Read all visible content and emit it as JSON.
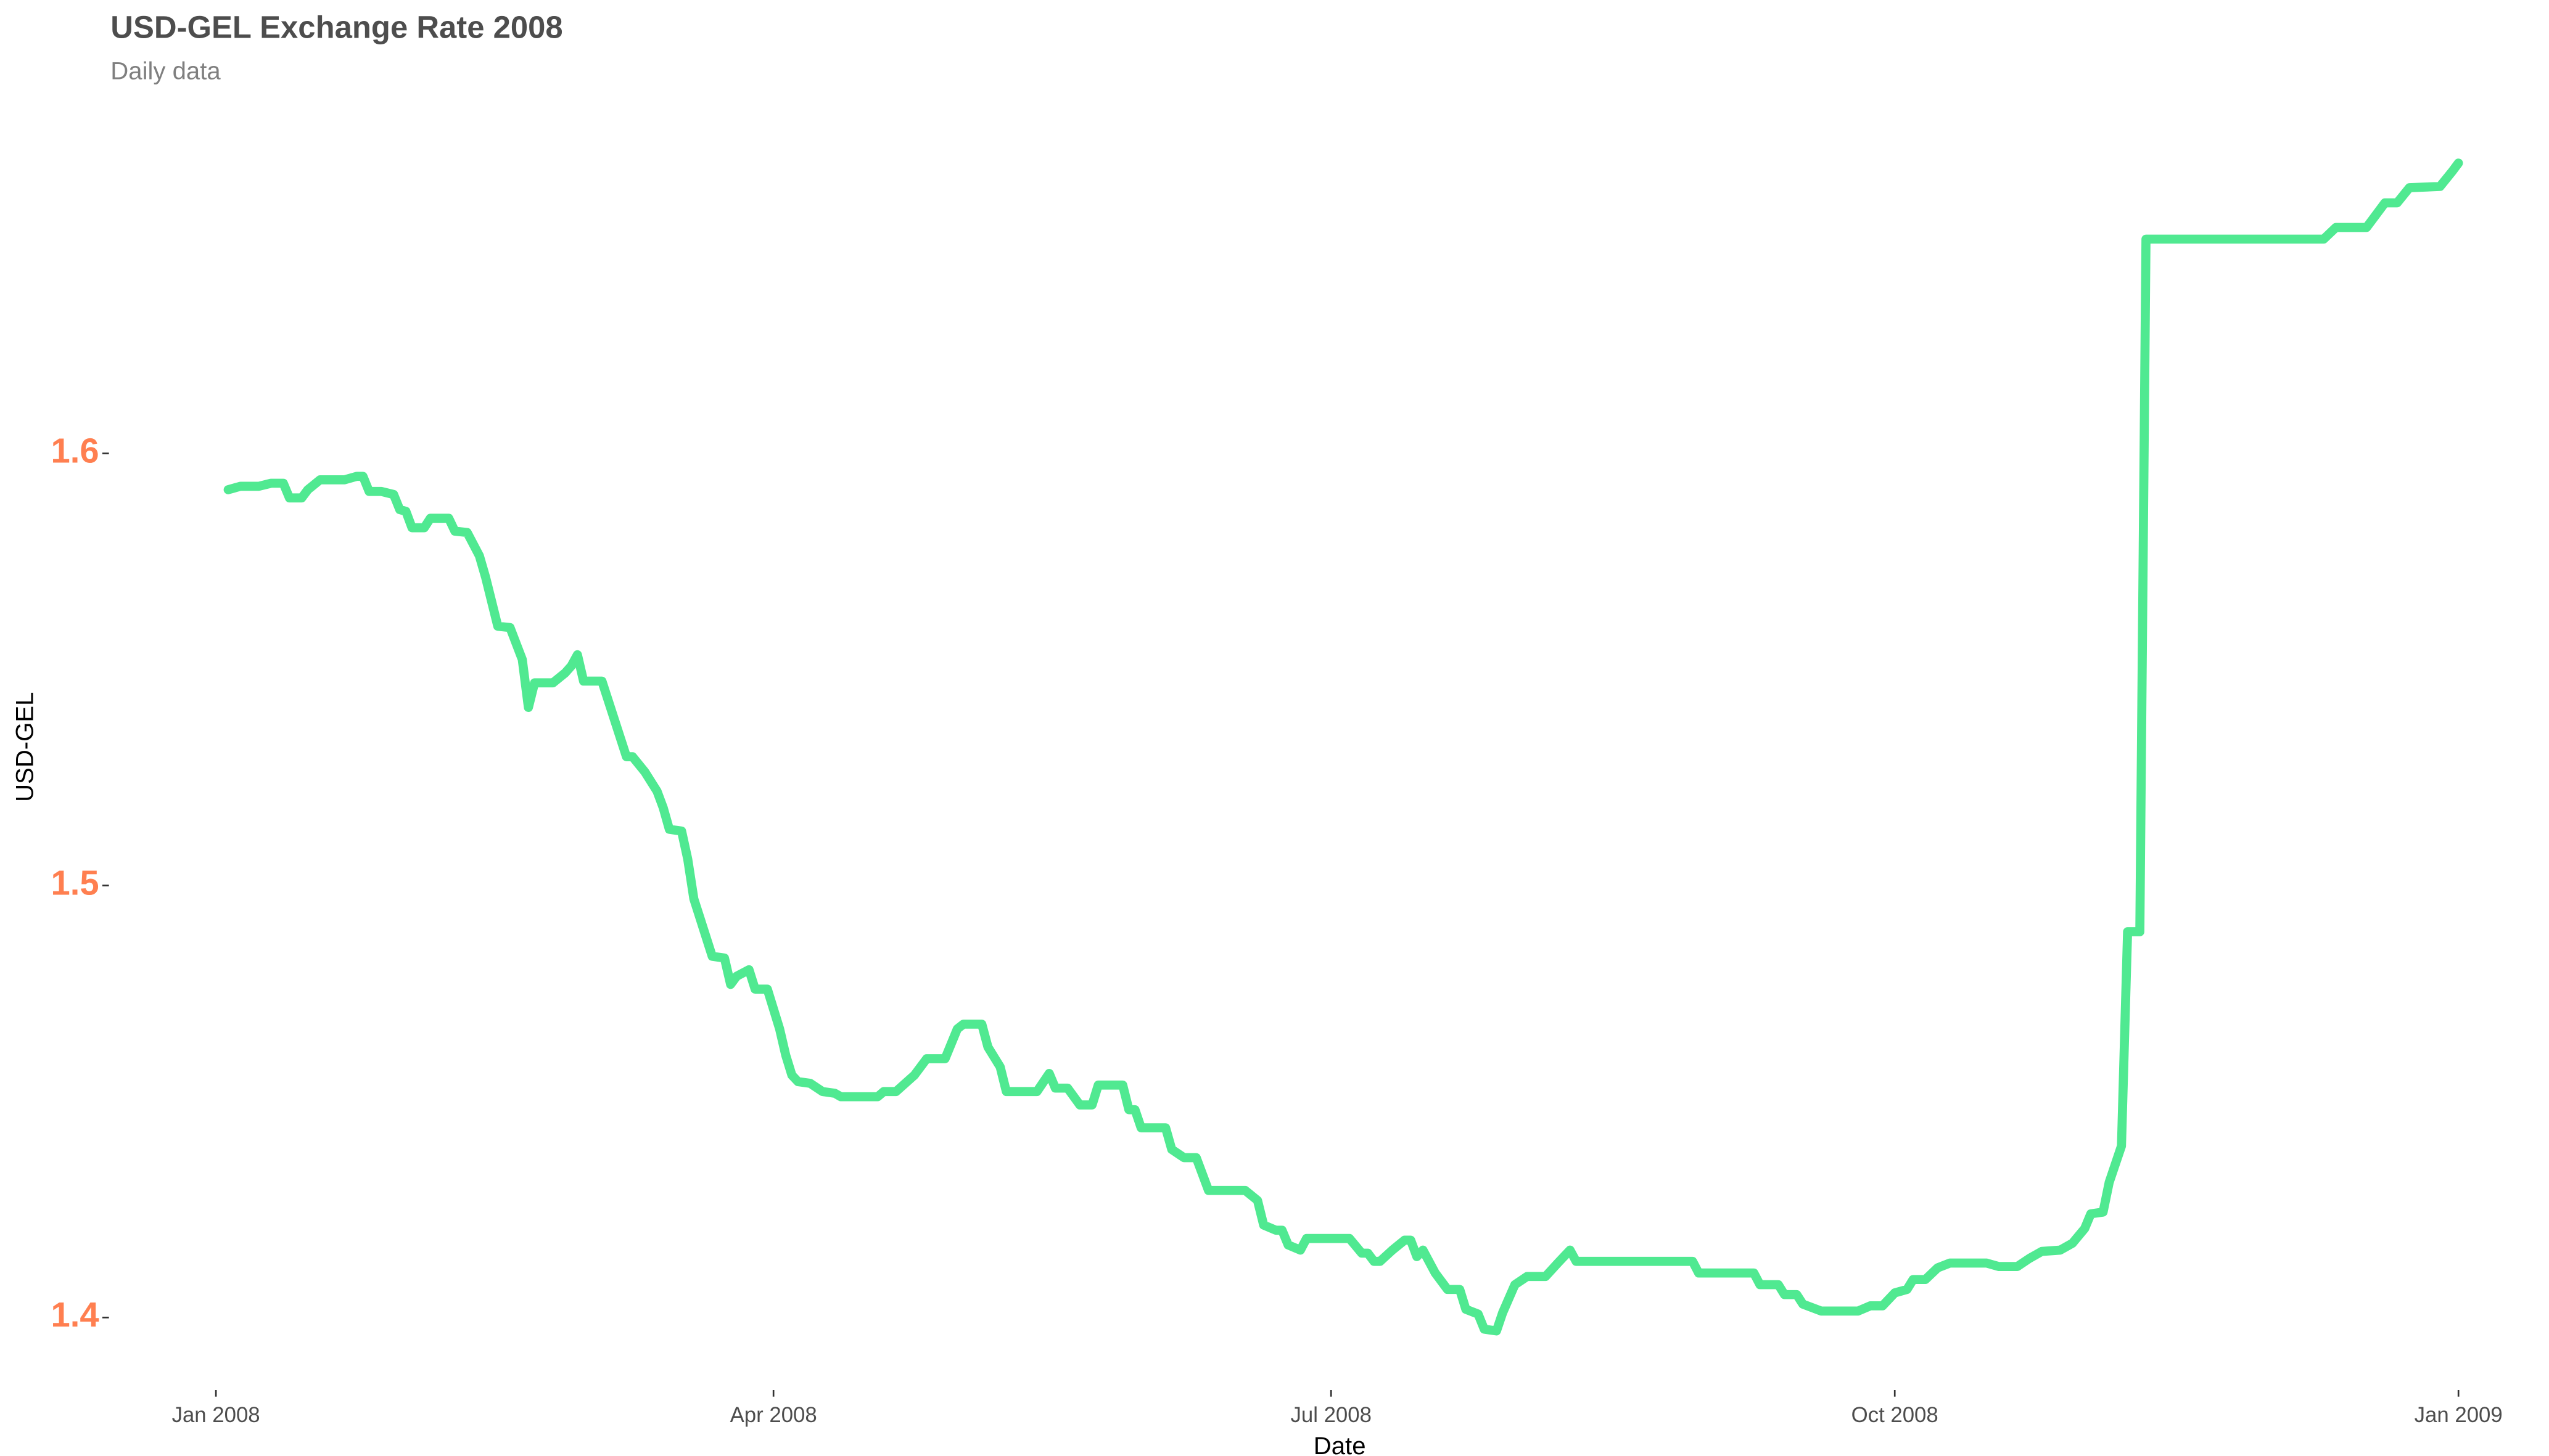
{
  "chart_data": {
    "type": "line",
    "title": "USD-GEL Exchange Rate 2008",
    "subtitle": "Daily data",
    "x_label": "Date",
    "y_label": "USD-GEL",
    "grid": false,
    "xlim": [
      -4,
      370
    ],
    "xticks": [
      {
        "value": 0,
        "label": "Jan 2008"
      },
      {
        "value": 91,
        "label": "Apr 2008"
      },
      {
        "value": 182,
        "label": "Jul 2008"
      },
      {
        "value": 274,
        "label": "Oct 2008"
      },
      {
        "value": 366,
        "label": "Jan 2009"
      }
    ],
    "ylim": [
      1.3939,
      1.6706
    ],
    "yticks": [
      1.4,
      1.5,
      1.6
    ],
    "tick_label_color": "#ff7f50",
    "x": [
      2,
      4,
      7,
      9,
      11,
      12,
      14,
      15,
      17,
      21,
      23,
      24,
      25,
      27,
      29,
      30,
      31,
      32,
      34,
      35,
      38,
      39,
      41,
      43,
      44,
      46,
      48,
      50,
      51,
      52,
      55,
      57,
      58,
      59,
      60,
      63,
      67,
      68,
      70,
      72,
      73,
      74,
      76,
      77,
      78,
      81,
      83,
      84,
      85,
      87,
      88,
      90,
      92,
      93,
      94,
      95,
      97,
      99,
      101,
      102,
      108,
      109,
      111,
      114,
      116,
      119,
      121,
      122,
      125,
      126,
      128,
      129,
      134,
      136,
      137,
      139,
      141,
      143,
      144,
      148,
      149,
      150,
      151,
      155,
      156,
      158,
      160,
      162,
      168,
      170,
      171,
      173,
      174,
      175,
      177,
      178,
      185,
      187,
      188,
      189,
      190,
      192,
      194,
      195,
      196,
      197,
      199,
      201,
      203,
      204,
      206,
      207,
      209,
      210,
      212,
      214,
      217,
      219,
      221,
      222,
      241,
      242,
      251,
      252,
      255,
      256,
      258,
      259,
      262,
      268,
      270,
      272,
      274,
      276,
      277,
      279,
      281,
      283,
      289,
      291,
      294,
      296,
      298,
      301,
      303,
      305,
      306,
      308,
      309,
      311,
      312,
      314,
      315,
      344,
      346,
      351,
      354,
      356,
      358,
      363,
      365,
      366
    ],
    "series": [
      {
        "name": "USD-GEL",
        "color": "#50e991",
        "values": [
          1.5916,
          1.5924,
          1.5924,
          1.5931,
          1.5931,
          1.5897,
          1.5897,
          1.5916,
          1.5939,
          1.5939,
          1.5947,
          1.5947,
          1.5912,
          1.5912,
          1.5905,
          1.587,
          1.5866,
          1.5828,
          1.5828,
          1.585,
          1.585,
          1.582,
          1.5817,
          1.5763,
          1.5714,
          1.56,
          1.5597,
          1.5523,
          1.5412,
          1.5469,
          1.5469,
          1.5492,
          1.5508,
          1.5534,
          1.5473,
          1.5473,
          1.5298,
          1.5298,
          1.5263,
          1.5218,
          1.518,
          1.513,
          1.5126,
          1.5061,
          1.4969,
          1.4836,
          1.4832,
          1.4771,
          1.479,
          1.4805,
          1.476,
          1.476,
          1.4668,
          1.4607,
          1.4561,
          1.4546,
          1.4542,
          1.4523,
          1.4519,
          1.4511,
          1.4511,
          1.4523,
          1.4523,
          1.4561,
          1.4599,
          1.4599,
          1.4668,
          1.4679,
          1.4679,
          1.4626,
          1.458,
          1.4523,
          1.4523,
          1.4565,
          1.4531,
          1.4531,
          1.4492,
          1.4492,
          1.4538,
          1.4538,
          1.4481,
          1.4481,
          1.4439,
          1.4439,
          1.4389,
          1.437,
          1.437,
          1.4294,
          1.4294,
          1.4271,
          1.4214,
          1.4202,
          1.4202,
          1.4168,
          1.4156,
          1.4183,
          1.4183,
          1.4149,
          1.4149,
          1.413,
          1.413,
          1.4156,
          1.4179,
          1.4179,
          1.4141,
          1.4156,
          1.4103,
          1.4065,
          1.4065,
          1.4019,
          1.4008,
          1.3973,
          1.3969,
          1.4011,
          1.4076,
          1.4095,
          1.4095,
          1.4126,
          1.4156,
          1.413,
          1.413,
          1.4103,
          1.4103,
          1.4076,
          1.4076,
          1.4053,
          1.4053,
          1.4031,
          1.4015,
          1.4015,
          1.4027,
          1.4027,
          1.4057,
          1.4065,
          1.4088,
          1.4088,
          1.4115,
          1.4126,
          1.4126,
          1.4118,
          1.4118,
          1.4137,
          1.4153,
          1.4156,
          1.4172,
          1.4206,
          1.424,
          1.4244,
          1.4313,
          1.4397,
          1.4893,
          1.4893,
          1.6496,
          1.6496,
          1.6523,
          1.6523,
          1.658,
          1.658,
          1.6615,
          1.6618,
          1.6653,
          1.6672
        ]
      }
    ]
  }
}
